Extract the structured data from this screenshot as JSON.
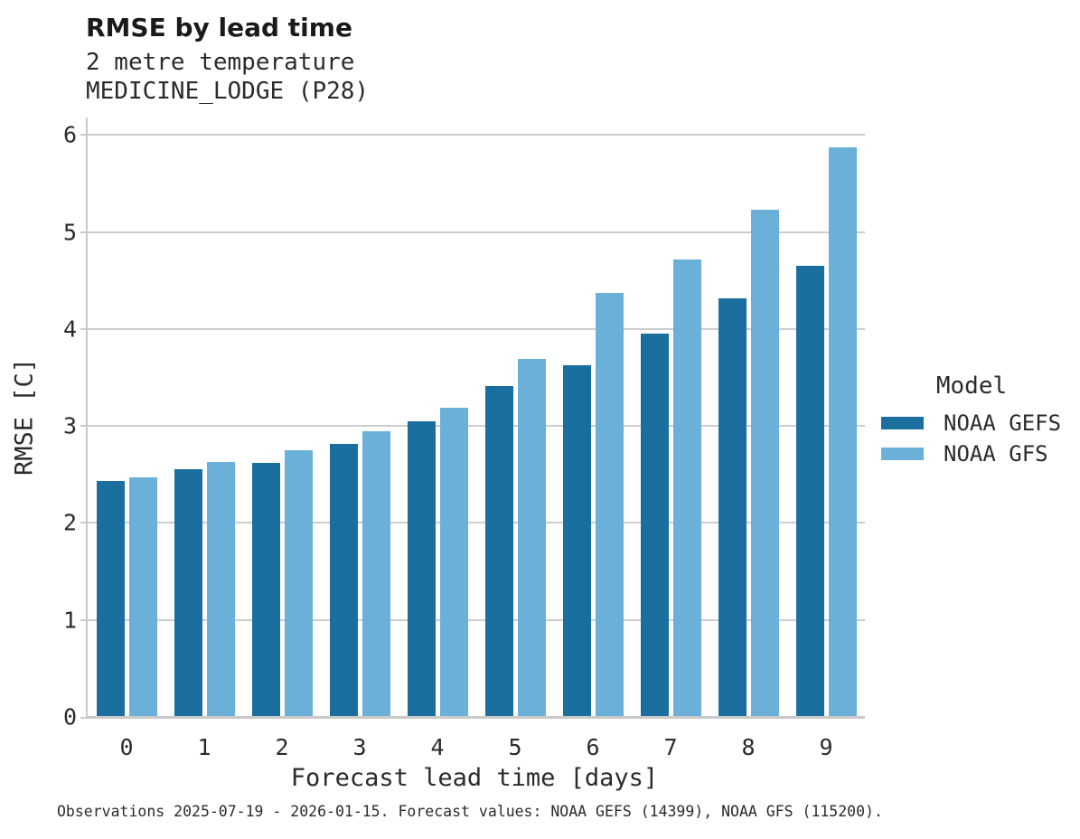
{
  "header": {
    "title": "RMSE by lead time",
    "subtitle_line1": "2 metre temperature",
    "subtitle_line2": "MEDICINE_LODGE (P28)"
  },
  "chart_data": {
    "type": "bar",
    "title": "RMSE by lead time",
    "subtitle": [
      "2 metre temperature",
      "MEDICINE_LODGE (P28)"
    ],
    "xlabel": "Forecast lead time [days]",
    "ylabel": "RMSE [C]",
    "categories": [
      "0",
      "1",
      "2",
      "3",
      "4",
      "5",
      "6",
      "7",
      "8",
      "9"
    ],
    "series": [
      {
        "name": "NOAA GEFS",
        "color": "#1a6f9e",
        "values": [
          2.42,
          2.54,
          2.61,
          2.81,
          3.04,
          3.4,
          3.62,
          3.94,
          4.31,
          4.64
        ]
      },
      {
        "name": "NOAA GFS",
        "color": "#6ab0d8",
        "values": [
          2.46,
          2.62,
          2.74,
          2.94,
          3.18,
          3.68,
          4.36,
          4.71,
          5.22,
          5.86
        ]
      }
    ],
    "ylim": [
      0,
      6.17
    ],
    "yticks": [
      0,
      1,
      2,
      3,
      4,
      5,
      6
    ],
    "grid": "horizontal",
    "legend_title": "Model",
    "legend_position": "right",
    "caption": "Observations 2025-07-19 - 2026-01-15. Forecast values: NOAA GEFS (14399), NOAA GFS (115200)."
  },
  "style": {
    "gridline_color": "#cdcdcd",
    "spine_color": "#c9c9c9",
    "text_color": "#2b2b2b"
  }
}
